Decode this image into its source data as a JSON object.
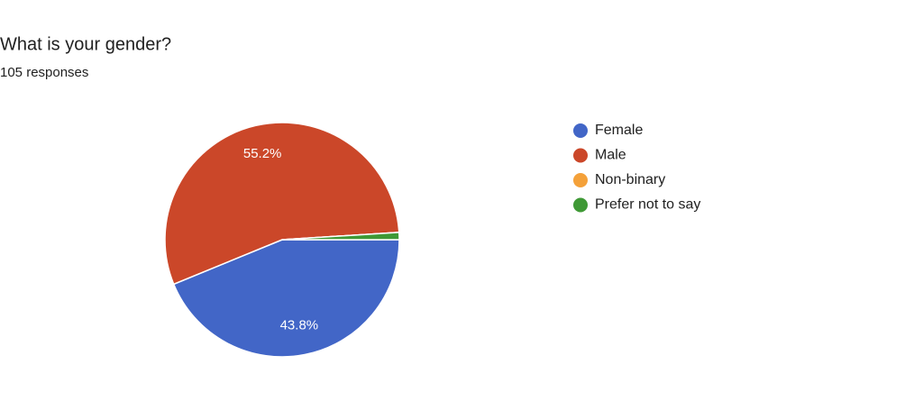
{
  "chart_data": {
    "type": "pie",
    "title": "What is your gender?",
    "subtitle": "105 responses",
    "categories": [
      "Female",
      "Male",
      "Non-binary",
      "Prefer not to say"
    ],
    "values": [
      43.8,
      55.2,
      0,
      1.0
    ],
    "value_labels": [
      "43.8%",
      "55.2%",
      null,
      null
    ],
    "colors": [
      "#4266c7",
      "#cb4729",
      "#f4a13a",
      "#3f9936"
    ],
    "legend": "right"
  }
}
